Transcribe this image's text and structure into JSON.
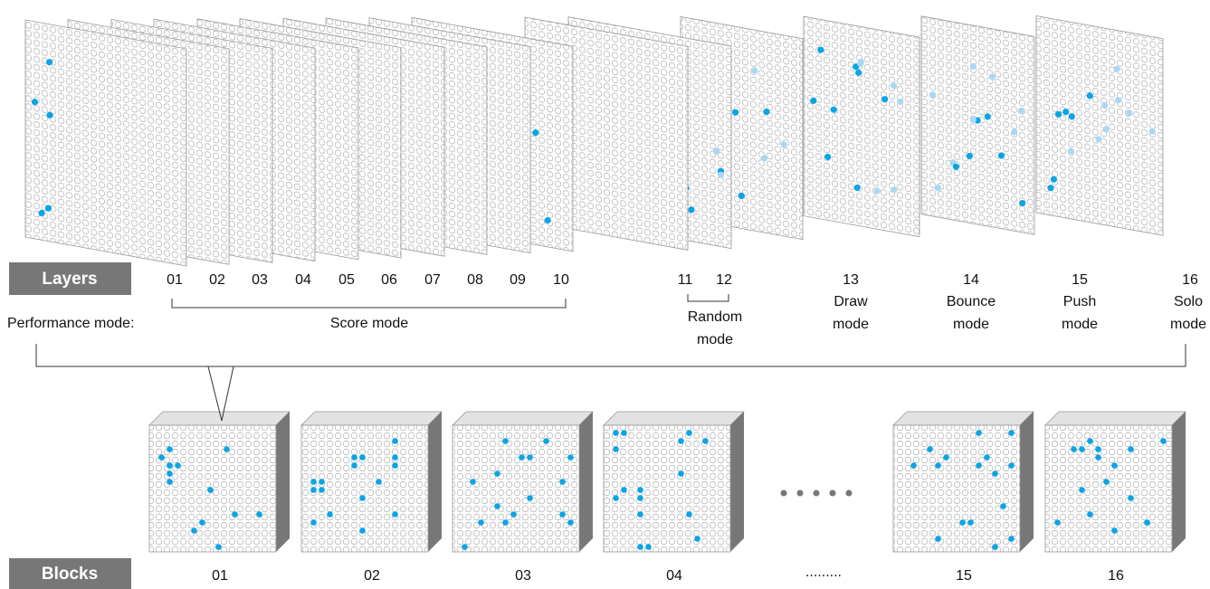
{
  "layers": {
    "label": "Layers",
    "items": [
      "01",
      "02",
      "03",
      "04",
      "05",
      "06",
      "07",
      "08",
      "09",
      "10",
      "11",
      "12",
      "13",
      "14",
      "15",
      "16"
    ]
  },
  "modes": [
    {
      "lines": [
        "Score mode"
      ]
    },
    {
      "lines": [
        "Random",
        "mode"
      ]
    },
    {
      "lines": [
        "Draw",
        "mode"
      ]
    },
    {
      "lines": [
        "Bounce",
        "mode"
      ]
    },
    {
      "lines": [
        "Push",
        "mode"
      ]
    },
    {
      "lines": [
        "Solo",
        "mode"
      ]
    }
  ],
  "performance_label": "Performance mode:",
  "blocks": {
    "label": "Blocks",
    "items": [
      "01",
      "02",
      "03",
      "04",
      "15",
      "16"
    ],
    "ellipsis": "........."
  }
}
